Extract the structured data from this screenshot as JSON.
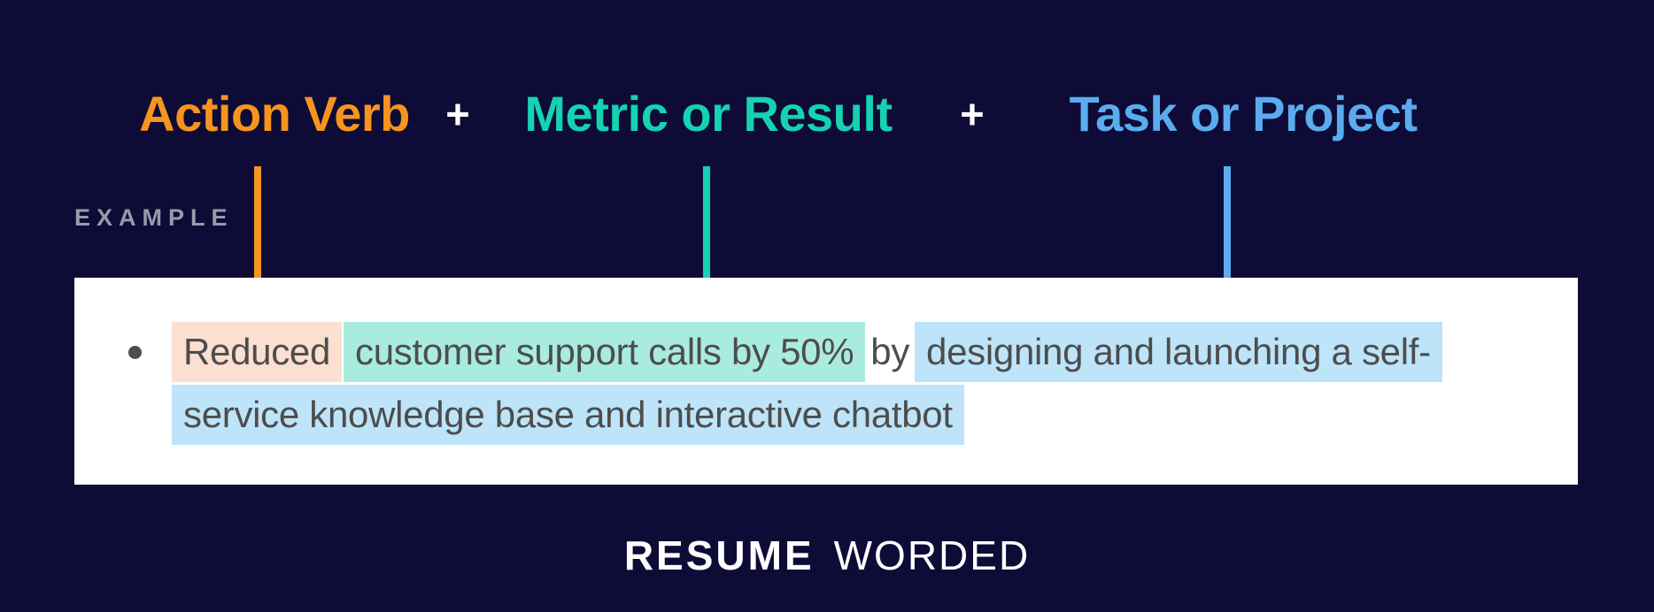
{
  "colors": {
    "bg": "#0e0b37",
    "orange": "#f7941d",
    "teal": "#15d2b3",
    "blue": "#5aacee",
    "hl-orange": "#fbdfd0",
    "hl-teal": "#a9ecdf",
    "hl-blue": "#bde4f9",
    "ink": "#4d4d4d",
    "muted": "#9a99ab"
  },
  "formula": {
    "plus_sign": "+",
    "parts": [
      {
        "label": "Action Verb",
        "color": "#f7941d"
      },
      {
        "label": "Metric or Result",
        "color": "#15d2b3"
      },
      {
        "label": "Task or Project",
        "color": "#5aacee"
      }
    ]
  },
  "example": {
    "section_label": "EXAMPLE",
    "bullet": {
      "action_verb": "Reduced",
      "metric": "customer support calls by 50%",
      "connector": "by",
      "task_line1": "designing and launching a self-",
      "task_line2": "service knowledge base and interactive chatbot",
      "full_text": "Reduced customer support calls by 50% by designing and launching a self-service knowledge base and interactive chatbot"
    }
  },
  "footer": {
    "brand_bold": "RESUME",
    "brand_light": "WORDED"
  }
}
